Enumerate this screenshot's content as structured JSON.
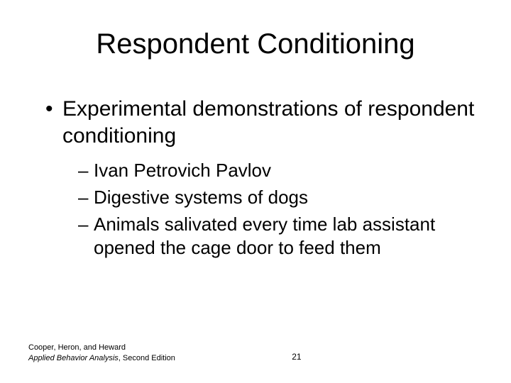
{
  "title": "Respondent Conditioning",
  "bullets": {
    "level1": [
      "Experimental demonstrations of respondent conditioning"
    ],
    "level2": [
      "Ivan Petrovich Pavlov",
      "Digestive systems of dogs",
      "Animals salivated every time lab assistant opened the cage door to feed them"
    ]
  },
  "footer": {
    "authors": "Cooper, Heron, and Heward",
    "book_title": "Applied Behavior Analysis",
    "edition_suffix": ", Second Edition",
    "page_number": "21"
  },
  "style": {
    "background_color": "#ffffff",
    "text_color": "#000000",
    "title_fontsize": 40,
    "level1_fontsize": 30,
    "level2_fontsize": 26,
    "footer_fontsize": 11,
    "font_family": "Arial"
  }
}
